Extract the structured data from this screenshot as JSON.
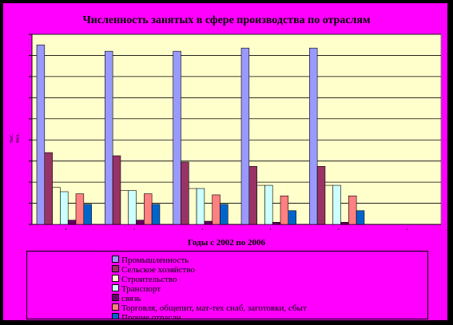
{
  "chart_data": {
    "type": "bar",
    "title": "Численность занятых в сфере производства по отраслям",
    "xlabel": "Годы с 2002 по 2006",
    "ylabel": "тыс. чел.",
    "ylim": [
      0,
      9
    ],
    "grid": true,
    "legend_position": "bottom",
    "categories": [
      "",
      "",
      "",
      "",
      "",
      ""
    ],
    "colors": [
      "#9999ff",
      "#993366",
      "#ffffcc",
      "#ccffff",
      "#660066",
      "#ff8080",
      "#0066cc"
    ],
    "series": [
      {
        "name": "Промышленность",
        "values": [
          8.5,
          8.2,
          8.2,
          8.35,
          8.35,
          0
        ]
      },
      {
        "name": "Сельское хозяйство",
        "values": [
          3.4,
          3.25,
          2.95,
          2.75,
          2.75,
          0
        ]
      },
      {
        "name": "Строительство",
        "values": [
          1.75,
          1.6,
          1.7,
          1.85,
          1.85,
          0
        ]
      },
      {
        "name": "Транспорт",
        "values": [
          1.55,
          1.6,
          1.7,
          1.85,
          1.85,
          0
        ]
      },
      {
        "name": "связь",
        "values": [
          0.2,
          0.2,
          0.15,
          0.1,
          0.1,
          0
        ]
      },
      {
        "name": "Торговля, общепит, мат-тех снаб, заготовки, сбыт",
        "values": [
          1.45,
          1.45,
          1.4,
          1.35,
          1.35,
          0
        ]
      },
      {
        "name": "Прочие отрасли",
        "values": [
          0.95,
          0.95,
          0.95,
          0.65,
          0.65,
          0
        ]
      }
    ]
  }
}
